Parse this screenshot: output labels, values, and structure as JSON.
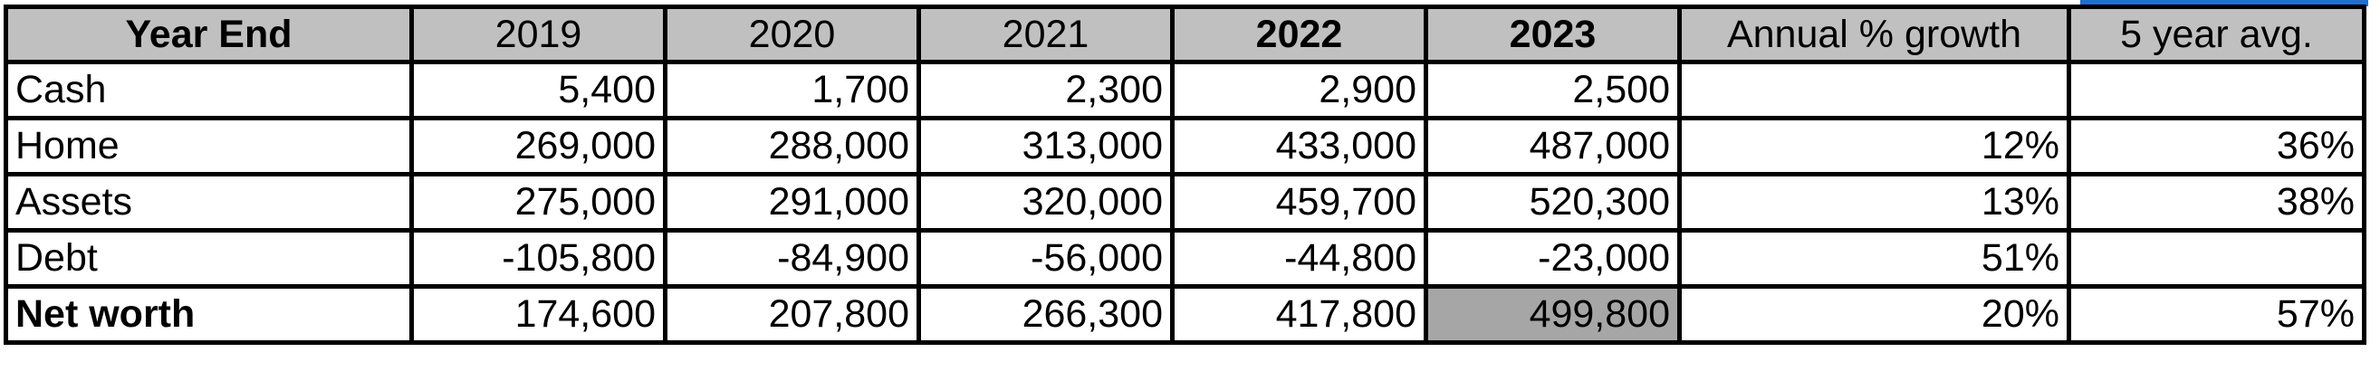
{
  "table": {
    "headers": [
      "Year End",
      "2019",
      "2020",
      "2021",
      "2022",
      "2023",
      "Annual % growth",
      "5 year avg."
    ],
    "rows": [
      {
        "label": "Cash",
        "values": [
          "5,400",
          "1,700",
          "2,300",
          "2,900",
          "2,500"
        ],
        "growth": "",
        "avg": ""
      },
      {
        "label": "Home",
        "values": [
          "269,000",
          "288,000",
          "313,000",
          "433,000",
          "487,000"
        ],
        "growth": "12%",
        "avg": "36%"
      },
      {
        "label": "Assets",
        "values": [
          "275,000",
          "291,000",
          "320,000",
          "459,700",
          "520,300"
        ],
        "growth": "13%",
        "avg": "38%"
      },
      {
        "label": "Debt",
        "values": [
          "-105,800",
          "-84,900",
          "-56,000",
          "-44,800",
          "-23,000"
        ],
        "growth": "51%",
        "avg": ""
      },
      {
        "label": "Net worth",
        "values": [
          "174,600",
          "207,800",
          "266,300",
          "417,800",
          "499,800"
        ],
        "growth": "20%",
        "avg": "57%"
      }
    ]
  },
  "colors": {
    "header_fill": "#c0c0c0",
    "highlight_fill": "#a6a6a6",
    "selection_accent": "#1f6fd1",
    "grid_line": "#000000"
  }
}
